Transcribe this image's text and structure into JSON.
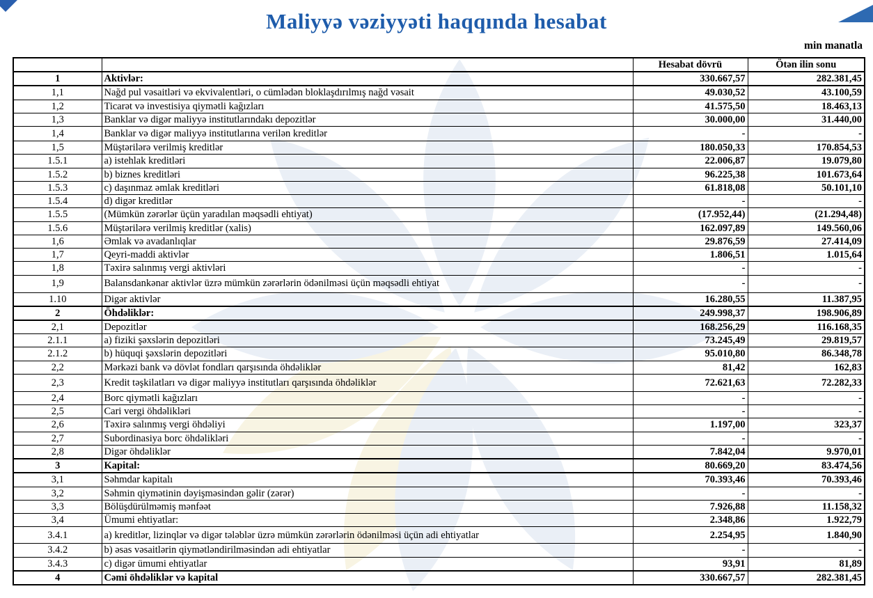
{
  "page": {
    "title": "Maliyyə vəziyyəti haqqında hesabat",
    "unit_note": "min manatla"
  },
  "colors": {
    "title_blue": "#1e5cab",
    "value_cell_blue": "#a6c7e9",
    "corner_triangle_blue": "#2e6ab2",
    "watermark_blue": "#eaeff6",
    "watermark_cream": "#f8f4e3"
  },
  "table": {
    "header": {
      "col_current": "Hesabat dövrü",
      "col_previous": "Ötən ilin sonu"
    },
    "rows": [
      {
        "no": "1",
        "label": "Aktivlər:",
        "current": "330.667,57",
        "previous": "282.381,45",
        "section": true
      },
      {
        "no": "1,1",
        "label": "Nağd pul vəsaitləri və  ekvivalentləri, o cümlədən bloklaşdırılmış nağd vəsait",
        "current": "49.030,52",
        "previous": "43.100,59",
        "section": false
      },
      {
        "no": "1,2",
        "label": "Ticarət və investisiya qiymətli kağızları",
        "current": "41.575,50",
        "previous": "18.463,13",
        "section": false
      },
      {
        "no": "1,3",
        "label": "Banklar və digər maliyyə institutlarındakı depozitlər",
        "current": "30.000,00",
        "previous": "31.440,00",
        "section": false
      },
      {
        "no": "1,4",
        "label": "Banklar və digər maliyyə institutlarına verilən kreditlər",
        "current": "-",
        "previous": "-",
        "section": false
      },
      {
        "no": "1,5",
        "label": "Müştərilərə verilmiş kreditlər",
        "current": "180.050,33",
        "previous": "170.854,53",
        "section": false
      },
      {
        "no": "1.5.1",
        "label": "a) istehlak kreditləri",
        "current": "22.006,87",
        "previous": "19.079,80",
        "section": false
      },
      {
        "no": "1.5.2",
        "label": "b) biznes kreditləri",
        "current": "96.225,38",
        "previous": "101.673,64",
        "section": false
      },
      {
        "no": "1.5.3",
        "label": "c) daşınmaz əmlak kreditləri",
        "current": "61.818,08",
        "previous": "50.101,10",
        "section": false
      },
      {
        "no": "1.5.4",
        "label": "d) digər kreditlər",
        "current": "-",
        "previous": "-",
        "section": false
      },
      {
        "no": "1.5.5",
        "label": "(Mümkün zərərlər üçün yaradılan məqsədli ehtiyat)",
        "current": "(17.952,44)",
        "previous": "(21.294,48)",
        "section": false
      },
      {
        "no": "1.5.6",
        "label": "Müştərilərə verilmiş kreditlər (xalis)",
        "current": "162.097,89",
        "previous": "149.560,06",
        "section": false
      },
      {
        "no": "1,6",
        "label": "Əmlak və avadanlıqlar",
        "current": "29.876,59",
        "previous": "27.414,09",
        "section": false
      },
      {
        "no": "1,7",
        "label": "Qeyri-maddi aktivlər",
        "current": "1.806,51",
        "previous": "1.015,64",
        "section": false
      },
      {
        "no": "1,8",
        "label": "Təxirə salınmış vergi aktivləri",
        "current": "-",
        "previous": "-",
        "section": false
      },
      {
        "no": "1,9",
        "label": "Balansdankənar aktivlər üzrə mümkün zərərlərin ödənilməsi üçün məqsədli ehtiyat",
        "current": "-",
        "previous": "-",
        "section": false
      },
      {
        "no": "1.10",
        "label": "Digər aktivlər",
        "current": "16.280,55",
        "previous": "11.387,95",
        "section": false
      },
      {
        "no": "2",
        "label": "Öhdəliklər:",
        "current": "249.998,37",
        "previous": "198.906,89",
        "section": true
      },
      {
        "no": "2,1",
        "label": "Depozitlər",
        "current": "168.256,29",
        "previous": "116.168,35",
        "section": false
      },
      {
        "no": "2.1.1",
        "label": "a) fiziki şəxslərin depozitləri",
        "current": "73.245,49",
        "previous": "29.819,57",
        "section": false
      },
      {
        "no": "2.1.2",
        "label": "b) hüquqi şəxslərin depozitləri",
        "current": "95.010,80",
        "previous": "86.348,78",
        "section": false
      },
      {
        "no": "2,2",
        "label": "Mərkəzi bank və dövlət fondları qarşısında öhdəliklər",
        "current": "81,42",
        "previous": "162,83",
        "section": false
      },
      {
        "no": "2,3",
        "label": "Kredit təşkilatları və digər maliyyə institutları qarşısında öhdəliklər",
        "current": "72.621,63",
        "previous": "72.282,33",
        "section": false
      },
      {
        "no": "2,4",
        "label": "Borc qiymətli kağızları",
        "current": "-",
        "previous": "-",
        "section": false
      },
      {
        "no": "2,5",
        "label": "Cari vergi öhdəlikləri",
        "current": "-",
        "previous": "-",
        "section": false
      },
      {
        "no": "2,6",
        "label": "Təxirə salınmış vergi öhdəliyi",
        "current": "1.197,00",
        "previous": "323,37",
        "section": false
      },
      {
        "no": "2,7",
        "label": "Subordinasiya borc öhdəlikləri",
        "current": "-",
        "previous": "-",
        "section": false
      },
      {
        "no": "2,8",
        "label": "Digər öhdəliklər",
        "current": "7.842,04",
        "previous": "9.970,01",
        "section": false
      },
      {
        "no": "3",
        "label": "Kapital:",
        "current": "80.669,20",
        "previous": "83.474,56",
        "section": true
      },
      {
        "no": "3,1",
        "label": "Səhmdar kapitalı",
        "current": "70.393,46",
        "previous": "70.393,46",
        "section": false
      },
      {
        "no": "3,2",
        "label": "Səhmin qiymətinin dəyişməsindən gəlir (zərər)",
        "current": "-",
        "previous": "-",
        "section": false
      },
      {
        "no": "3,3",
        "label": "Bölüşdürülməmiş mənfəət",
        "current": "7.926,88",
        "previous": "11.158,32",
        "section": false
      },
      {
        "no": "3,4",
        "label": "Ümumi ehtiyatlar:",
        "current": "2.348,86",
        "previous": "1.922,79",
        "section": false
      },
      {
        "no": "3.4.1",
        "label": "a) kreditlər, lizinqlər və digər tələblər üzrə mümkün zərərlərin ödənilməsi üçün adi ehtiyatlar",
        "current": "2.254,95",
        "previous": "1.840,90",
        "section": false
      },
      {
        "no": "3.4.2",
        "label": "b) əsas vəsaitlərin qiymətləndirilməsindən adi ehtiyatlar",
        "current": "-",
        "previous": "-",
        "section": false
      },
      {
        "no": "3.4.3",
        "label": "c) digər ümumi ehtiyatlar",
        "current": "93,91",
        "previous": "81,89",
        "section": false
      },
      {
        "no": "4",
        "label": "Cəmi öhdəliklər və kapital",
        "current": "330.667,57",
        "previous": "282.381,45",
        "section": true
      }
    ]
  }
}
